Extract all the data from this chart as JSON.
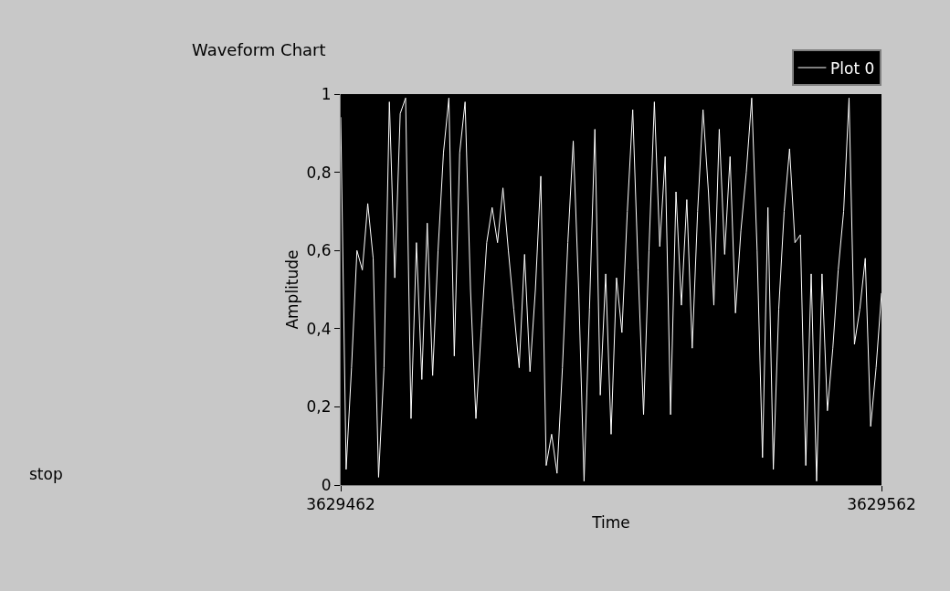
{
  "chart_data": {
    "type": "line",
    "title": "Waveform Chart",
    "xlabel": "Time",
    "ylabel": "Amplitude",
    "x": [
      3629462,
      3629463,
      3629464,
      3629465,
      3629466,
      3629467,
      3629468,
      3629469,
      3629470,
      3629471,
      3629472,
      3629473,
      3629474,
      3629475,
      3629476,
      3629477,
      3629478,
      3629479,
      3629480,
      3629481,
      3629482,
      3629483,
      3629484,
      3629485,
      3629486,
      3629487,
      3629488,
      3629489,
      3629490,
      3629491,
      3629492,
      3629493,
      3629494,
      3629495,
      3629496,
      3629497,
      3629498,
      3629499,
      3629500,
      3629501,
      3629502,
      3629503,
      3629504,
      3629505,
      3629506,
      3629507,
      3629508,
      3629509,
      3629510,
      3629511,
      3629512,
      3629513,
      3629514,
      3629515,
      3629516,
      3629517,
      3629518,
      3629519,
      3629520,
      3629521,
      3629522,
      3629523,
      3629524,
      3629525,
      3629526,
      3629527,
      3629528,
      3629529,
      3629530,
      3629531,
      3629532,
      3629533,
      3629534,
      3629535,
      3629536,
      3629537,
      3629538,
      3629539,
      3629540,
      3629541,
      3629542,
      3629543,
      3629544,
      3629545,
      3629546,
      3629547,
      3629548,
      3629549,
      3629550,
      3629551,
      3629552,
      3629553,
      3629554,
      3629555,
      3629556,
      3629557,
      3629558,
      3629559,
      3629560,
      3629561,
      3629562
    ],
    "series": [
      {
        "name": "Plot 0",
        "color": "#ffffff",
        "values": [
          0.94,
          0.04,
          0.3,
          0.6,
          0.55,
          0.72,
          0.58,
          0.02,
          0.3,
          0.98,
          0.53,
          0.95,
          0.99,
          0.17,
          0.62,
          0.27,
          0.67,
          0.28,
          0.6,
          0.85,
          0.99,
          0.33,
          0.85,
          0.98,
          0.5,
          0.17,
          0.4,
          0.62,
          0.71,
          0.62,
          0.76,
          0.6,
          0.45,
          0.3,
          0.59,
          0.29,
          0.5,
          0.79,
          0.05,
          0.13,
          0.03,
          0.3,
          0.62,
          0.88,
          0.5,
          0.01,
          0.45,
          0.91,
          0.23,
          0.54,
          0.13,
          0.53,
          0.39,
          0.7,
          0.96,
          0.55,
          0.18,
          0.6,
          0.98,
          0.61,
          0.84,
          0.18,
          0.75,
          0.46,
          0.73,
          0.35,
          0.7,
          0.96,
          0.75,
          0.46,
          0.91,
          0.59,
          0.84,
          0.44,
          0.65,
          0.8,
          0.99,
          0.6,
          0.07,
          0.71,
          0.04,
          0.45,
          0.7,
          0.86,
          0.62,
          0.64,
          0.05,
          0.54,
          0.01,
          0.54,
          0.19,
          0.35,
          0.55,
          0.7,
          0.99,
          0.36,
          0.45,
          0.58,
          0.15,
          0.3,
          0.49
        ]
      }
    ],
    "xlim": [
      3629462,
      3629562
    ],
    "xticks": [
      3629462,
      3629562
    ],
    "ylim": [
      0,
      1
    ],
    "yticks": [
      0,
      {
        "value": 0.2,
        "label": "0,2"
      },
      {
        "value": 0.4,
        "label": "0,4"
      },
      {
        "value": 0.6,
        "label": "0,6"
      },
      {
        "value": 0.8,
        "label": "0,8"
      },
      1
    ],
    "grid": false,
    "legend": "top right",
    "marker": "none",
    "line_style": "solid",
    "annotations": [
      "stop"
    ]
  }
}
